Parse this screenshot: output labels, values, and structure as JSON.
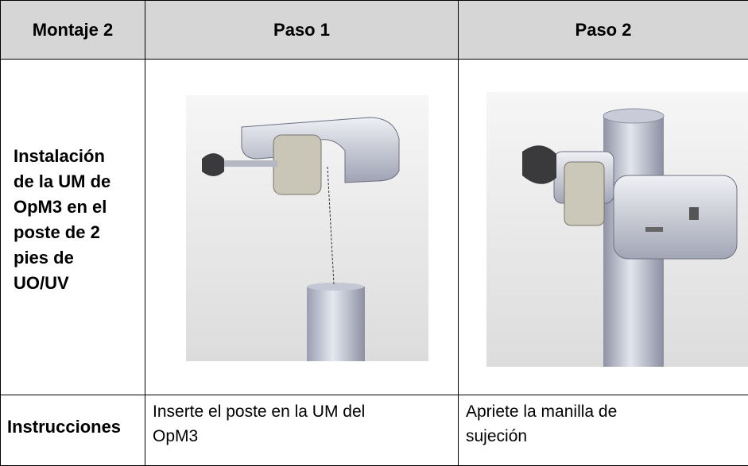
{
  "table": {
    "header": [
      "Montaje 2",
      "Paso 1",
      "Paso 2"
    ],
    "installation_row": {
      "label": [
        "Instalación",
        "de la UM de",
        "OpM3 en el",
        "poste de 2",
        "pies de",
        "UO/UV"
      ]
    },
    "instructions_row": {
      "label": "Instrucciones",
      "step_1": [
        "Inserte el poste en la UM del",
        "OpM3"
      ],
      "step_2": [
        "Apriete la manilla de",
        "sujeción"
      ]
    }
  }
}
